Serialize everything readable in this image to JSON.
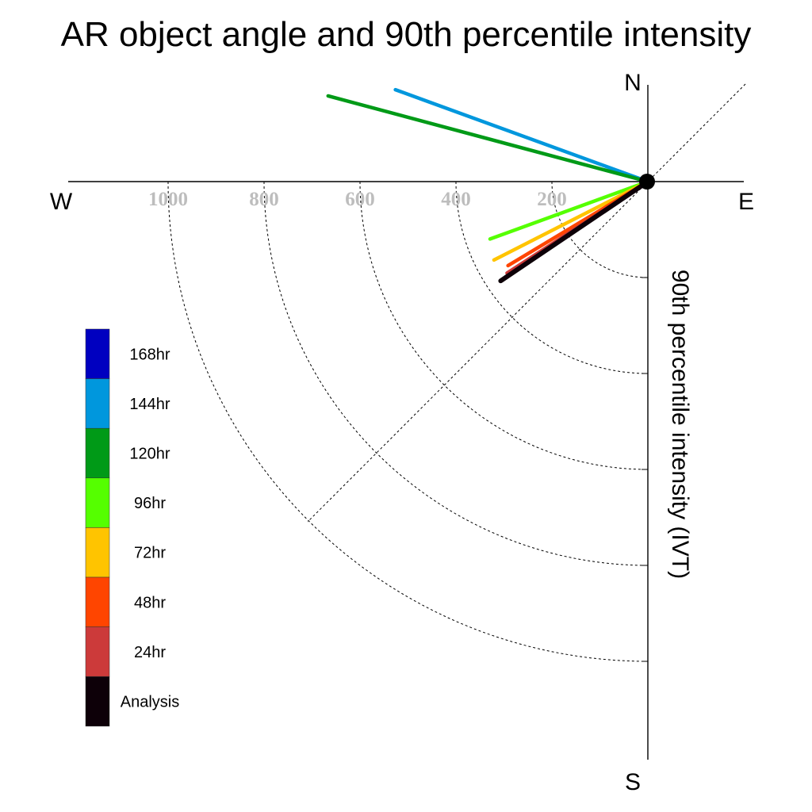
{
  "chart_data": {
    "type": "polar-vector",
    "title": "AR object angle and 90th percentile intensity",
    "ylabel": "90th percentile intensity (IVT)",
    "compass": {
      "north": "N",
      "south": "S",
      "east": "E",
      "west": "W"
    },
    "radial_ticks": [
      "200",
      "400",
      "600",
      "800",
      "1000"
    ],
    "radial_tick_values": [
      200,
      400,
      600,
      800,
      1000
    ],
    "grid": true,
    "legend_position": "lower-left",
    "series": [
      {
        "name": "Analysis",
        "color": "#0d0008",
        "angle_deg": 214,
        "intensity": 370
      },
      {
        "name": "24hr",
        "color": "#cc3a3a",
        "angle_deg": 213,
        "intensity": 350
      },
      {
        "name": "48hr",
        "color": "#ff4500",
        "angle_deg": 211,
        "intensity": 340
      },
      {
        "name": "72hr",
        "color": "#ffc400",
        "angle_deg": 207,
        "intensity": 360
      },
      {
        "name": "96hr",
        "color": "#55ff00",
        "angle_deg": 200,
        "intensity": 350
      },
      {
        "name": "120hr",
        "color": "#009a17",
        "angle_deg": 165,
        "intensity": 690
      },
      {
        "name": "144hr",
        "color": "#0097dd",
        "angle_deg": 160,
        "intensity": 560
      },
      {
        "name": "168hr",
        "color": "#0000c0",
        "angle_deg": null,
        "intensity": null
      }
    ],
    "legend_order": [
      "168hr",
      "144hr",
      "120hr",
      "96hr",
      "72hr",
      "48hr",
      "24hr",
      "Analysis"
    ]
  }
}
